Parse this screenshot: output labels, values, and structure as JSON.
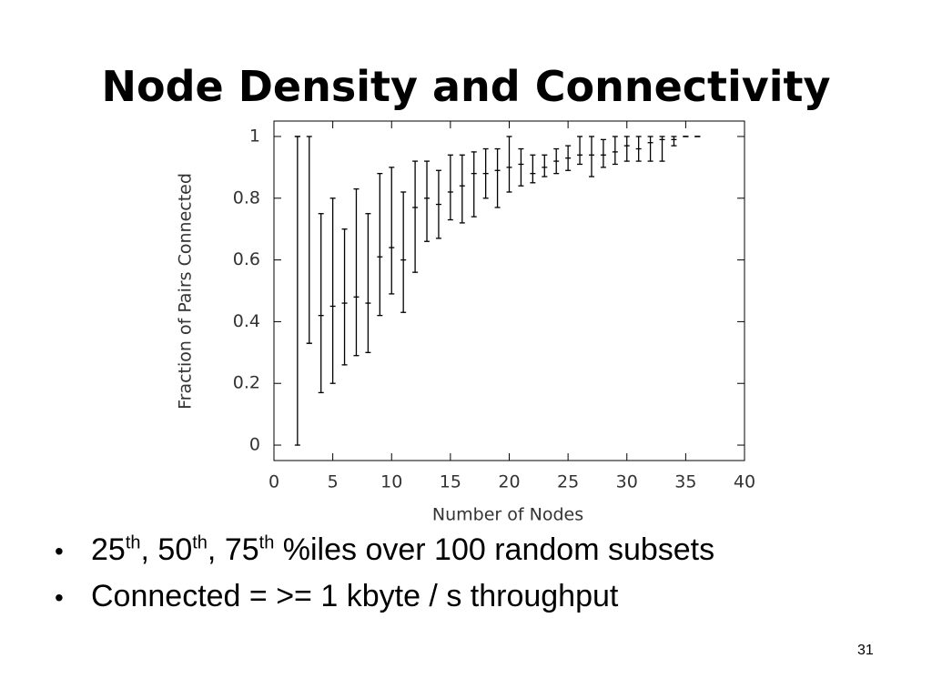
{
  "title": "Node Density and Connectivity",
  "chart_data": {
    "type": "errorbar",
    "xlabel": "Number of Nodes",
    "ylabel": "Fraction of Pairs Connected",
    "x": [
      2,
      3,
      4,
      5,
      6,
      7,
      8,
      9,
      10,
      11,
      12,
      13,
      14,
      15,
      16,
      17,
      18,
      19,
      20,
      21,
      22,
      23,
      24,
      25,
      26,
      27,
      28,
      29,
      30,
      31,
      32,
      33,
      34,
      35,
      36
    ],
    "values": [
      1,
      0.33,
      0.42,
      0.45,
      0.46,
      0.48,
      0.46,
      0.61,
      0.64,
      0.6,
      0.77,
      0.8,
      0.78,
      0.82,
      0.84,
      0.88,
      0.88,
      0.89,
      0.9,
      0.91,
      0.88,
      0.9,
      0.92,
      0.93,
      0.94,
      0.94,
      0.94,
      0.95,
      0.97,
      0.96,
      0.98,
      0.99,
      0.99,
      1,
      1
    ],
    "lower": [
      0,
      0.33,
      0.17,
      0.2,
      0.26,
      0.29,
      0.3,
      0.42,
      0.49,
      0.43,
      0.56,
      0.66,
      0.67,
      0.73,
      0.72,
      0.74,
      0.8,
      0.77,
      0.82,
      0.84,
      0.85,
      0.87,
      0.88,
      0.89,
      0.91,
      0.87,
      0.9,
      0.91,
      0.92,
      0.92,
      0.92,
      0.92,
      0.97,
      1,
      1
    ],
    "upper": [
      1,
      1,
      0.75,
      0.8,
      0.7,
      0.83,
      0.75,
      0.88,
      0.9,
      0.82,
      0.92,
      0.92,
      0.89,
      0.94,
      0.94,
      0.95,
      0.96,
      0.96,
      1,
      0.96,
      0.94,
      0.94,
      0.96,
      0.97,
      1,
      1,
      0.99,
      1,
      1,
      1,
      1,
      1,
      1,
      1,
      1
    ],
    "color": "#000000",
    "xlim": [
      0,
      40
    ],
    "xticks": [
      0,
      5,
      10,
      15,
      20,
      25,
      30,
      35,
      40
    ],
    "ylim": [
      -0.05,
      1.05
    ],
    "yticks": [
      0,
      0.2,
      0.4,
      0.6,
      0.8,
      1
    ]
  },
  "bullets": [
    [
      "25",
      "th",
      ", 50",
      "th",
      ", 75",
      "th",
      " %iles over 100 random subsets"
    ],
    [
      "Connected = >= 1 kbyte / s throughput"
    ]
  ],
  "page_number": "31"
}
